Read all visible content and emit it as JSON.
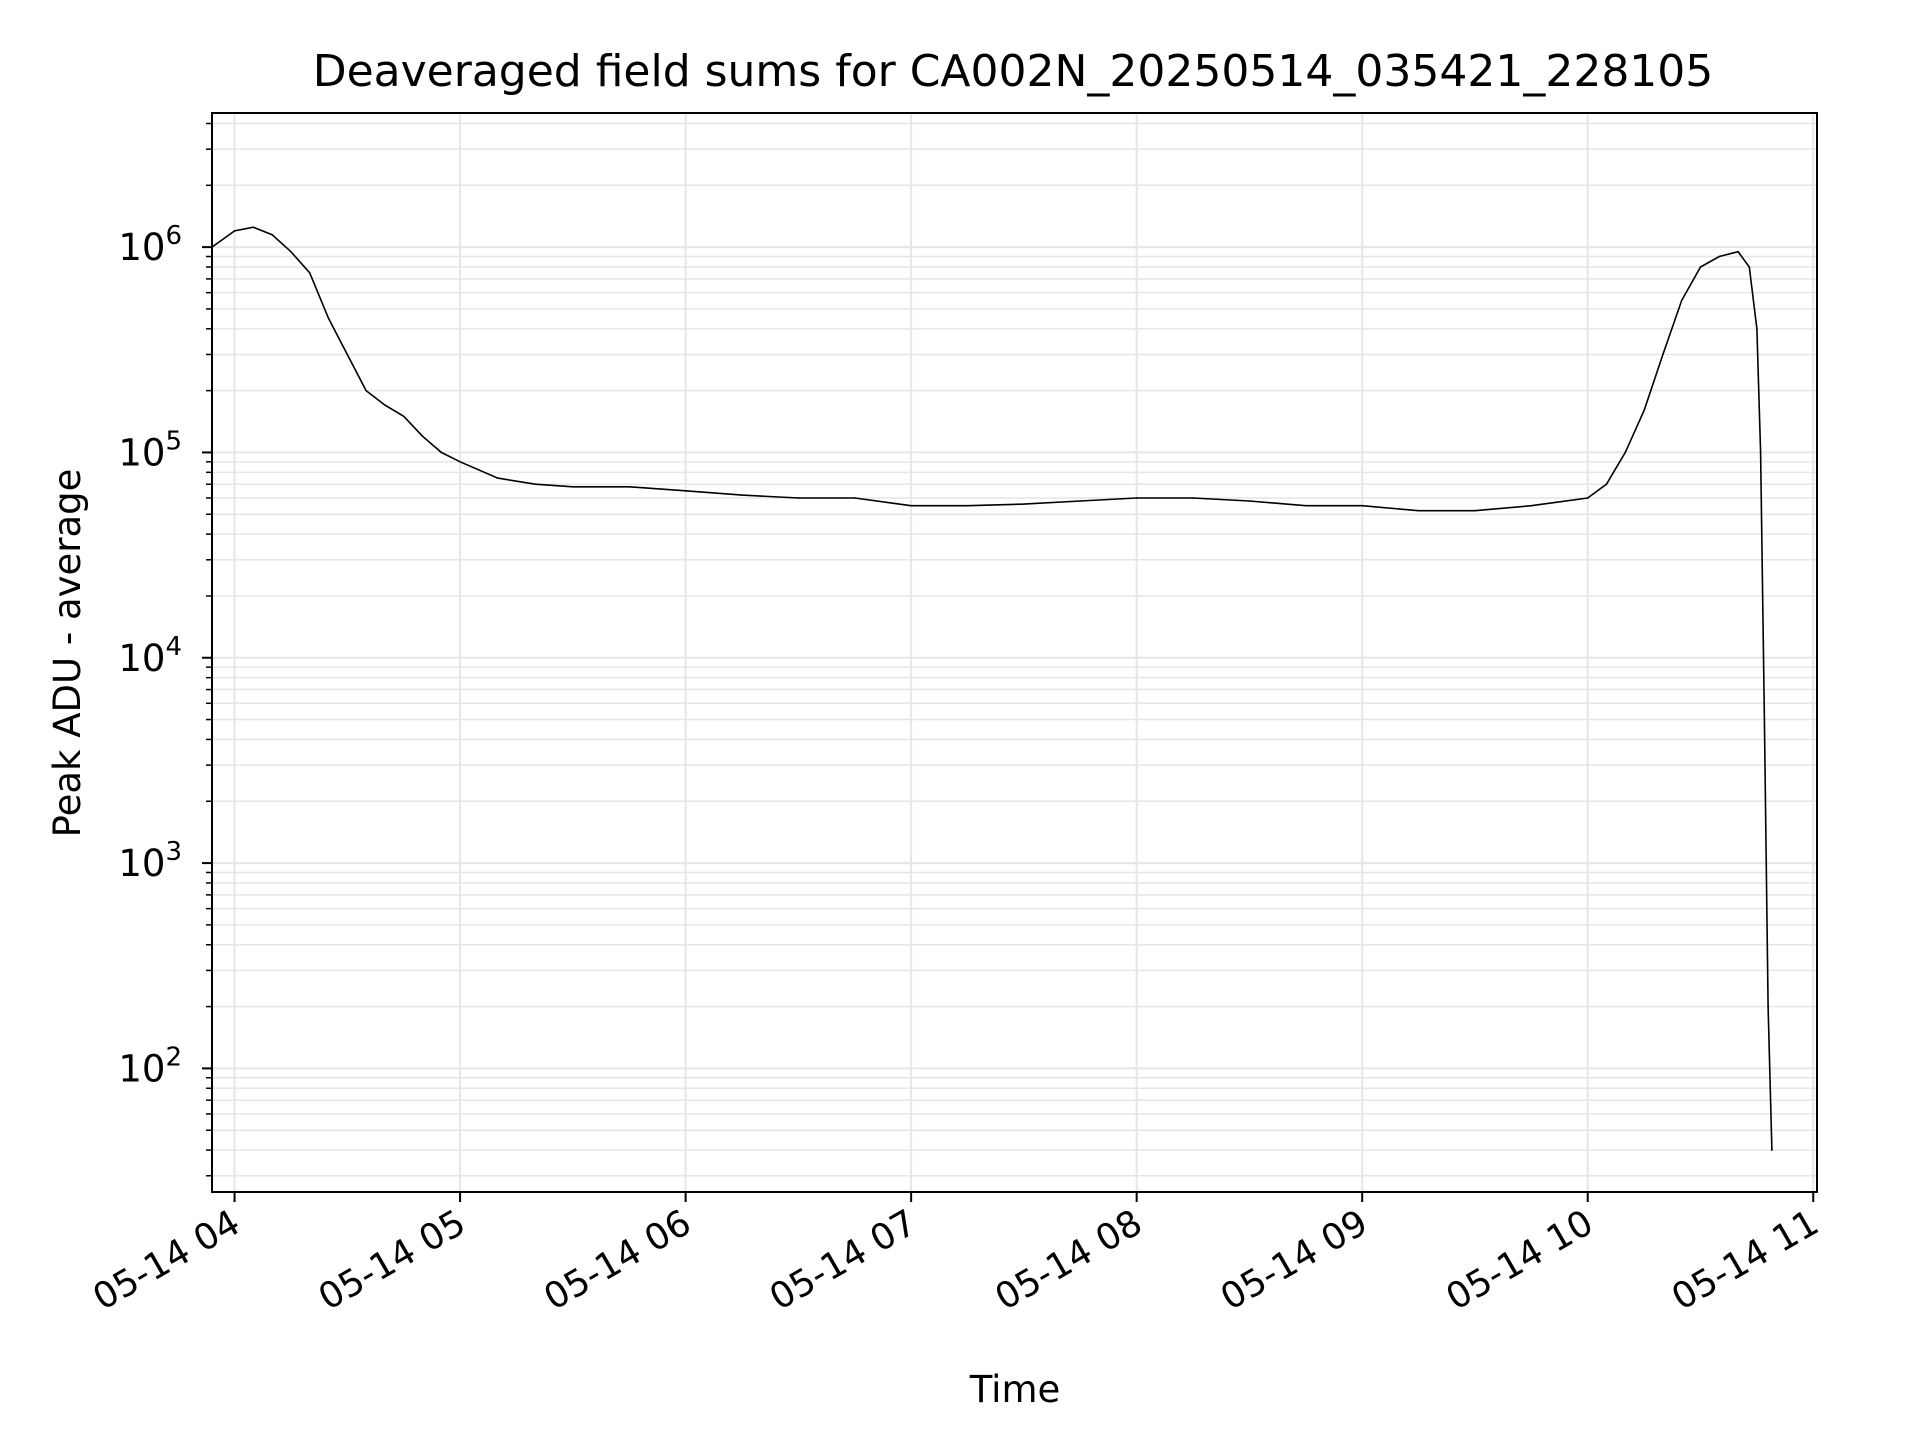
{
  "chart_data": {
    "type": "line",
    "title": "Deaveraged field sums for CA002N_20250514_035421_228105",
    "xlabel": "Time",
    "ylabel": "Peak ADU - average",
    "x_tick_labels": [
      "05-14 04",
      "05-14 05",
      "05-14 06",
      "05-14 07",
      "05-14 08",
      "05-14 09",
      "05-14 10",
      "05-14 11"
    ],
    "y_tick_labels": [
      {
        "base": "10",
        "exp": "2"
      },
      {
        "base": "10",
        "exp": "3"
      },
      {
        "base": "10",
        "exp": "4"
      },
      {
        "base": "10",
        "exp": "5"
      },
      {
        "base": "10",
        "exp": "6"
      }
    ],
    "y_scale": "log",
    "ylim": [
      25,
      4500000
    ],
    "xlim": [
      "2025-05-14T03:54",
      "2025-05-14T11:01"
    ],
    "grid": true,
    "line_color": "#000000",
    "series": [
      {
        "x": [
          "2025-05-14T03:54",
          "2025-05-14T04:00",
          "2025-05-14T04:05",
          "2025-05-14T04:10",
          "2025-05-14T04:15",
          "2025-05-14T04:20",
          "2025-05-14T04:25",
          "2025-05-14T04:30",
          "2025-05-14T04:35",
          "2025-05-14T04:40",
          "2025-05-14T04:45",
          "2025-05-14T04:50",
          "2025-05-14T04:55",
          "2025-05-14T05:00",
          "2025-05-14T05:10",
          "2025-05-14T05:20",
          "2025-05-14T05:30",
          "2025-05-14T05:45",
          "2025-05-14T06:00",
          "2025-05-14T06:15",
          "2025-05-14T06:30",
          "2025-05-14T06:45",
          "2025-05-14T07:00",
          "2025-05-14T07:15",
          "2025-05-14T07:30",
          "2025-05-14T07:45",
          "2025-05-14T08:00",
          "2025-05-14T08:15",
          "2025-05-14T08:30",
          "2025-05-14T08:45",
          "2025-05-14T09:00",
          "2025-05-14T09:15",
          "2025-05-14T09:30",
          "2025-05-14T09:45",
          "2025-05-14T10:00",
          "2025-05-14T10:05",
          "2025-05-14T10:10",
          "2025-05-14T10:15",
          "2025-05-14T10:20",
          "2025-05-14T10:25",
          "2025-05-14T10:30",
          "2025-05-14T10:35",
          "2025-05-14T10:40",
          "2025-05-14T10:43",
          "2025-05-14T10:45",
          "2025-05-14T10:46",
          "2025-05-14T10:47",
          "2025-05-14T10:48",
          "2025-05-14T10:49"
        ],
        "values": [
          1000000,
          1200000,
          1250000,
          1150000,
          950000,
          750000,
          450000,
          300000,
          200000,
          170000,
          150000,
          120000,
          100000,
          90000,
          75000,
          70000,
          68000,
          68000,
          65000,
          62000,
          60000,
          60000,
          55000,
          55000,
          56000,
          58000,
          60000,
          60000,
          58000,
          55000,
          55000,
          52000,
          52000,
          55000,
          60000,
          70000,
          100000,
          160000,
          300000,
          550000,
          800000,
          900000,
          950000,
          800000,
          400000,
          100000,
          5000,
          200,
          40
        ]
      }
    ]
  }
}
